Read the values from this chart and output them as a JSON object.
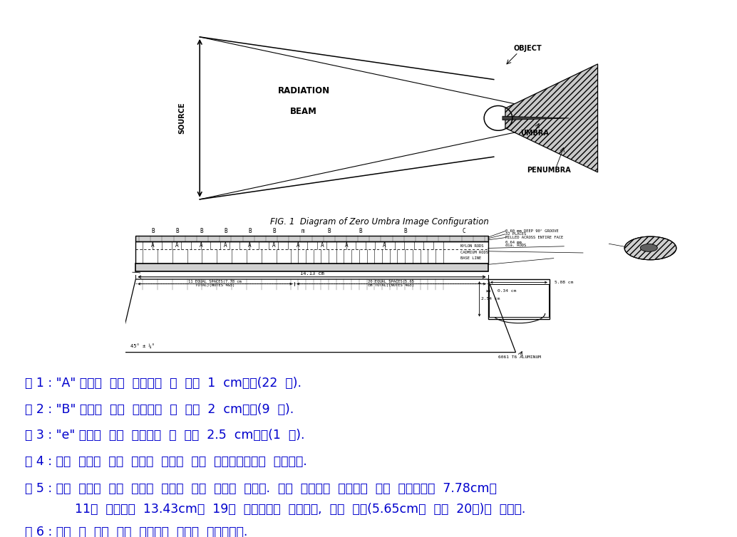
{
  "bg_color": "#ffffff",
  "fig_width": 10.34,
  "fig_height": 7.54,
  "dpi": 100,
  "notes": [
    {
      "prefix": "주 1 : ",
      "text": "\"A\" 위치의  봉은  중심선의  각  면에  1  cm이다(22  개)."
    },
    {
      "prefix": "주 2 : ",
      "text": "\"B\" 위치의  봉은  중심선의  각  면에  2  cm이다(9  개)."
    },
    {
      "prefix": "주 3 : ",
      "text": "\"e\" 위치의  봉은  중심선의  각  면에  2.5  cm이다(1  개)."
    },
    {
      "prefix": "주 4 : ",
      "text": "모든  치수는  누적  오차를  줄이기  위해  기준선으로부터  거리이다."
    },
    {
      "prefix": "주 5 : ",
      "text": "봉의  배치는  단일  시스템  장치에  대해  표시된  것이다.  이중  시스템을  구성하기  위한  추가장치는  7.78cm의"
    },
    {
      "prefix": "",
      "indent": true,
      "text": "11개  등간격을  13.43cm의  19개  등간격으로  확장하고,  근접  간격(5.65cm의  경우  20개)은  없앤다."
    },
    {
      "prefix": "주 6 : ",
      "text": "봉은  한  격의  투명  테이프로  단단히  고정시킨다."
    }
  ],
  "fig1_caption": "FIG. 1  Diagram of Zero Umbra Image Configuration",
  "note_color": "#0000cd",
  "note_fontsize": 12.5
}
